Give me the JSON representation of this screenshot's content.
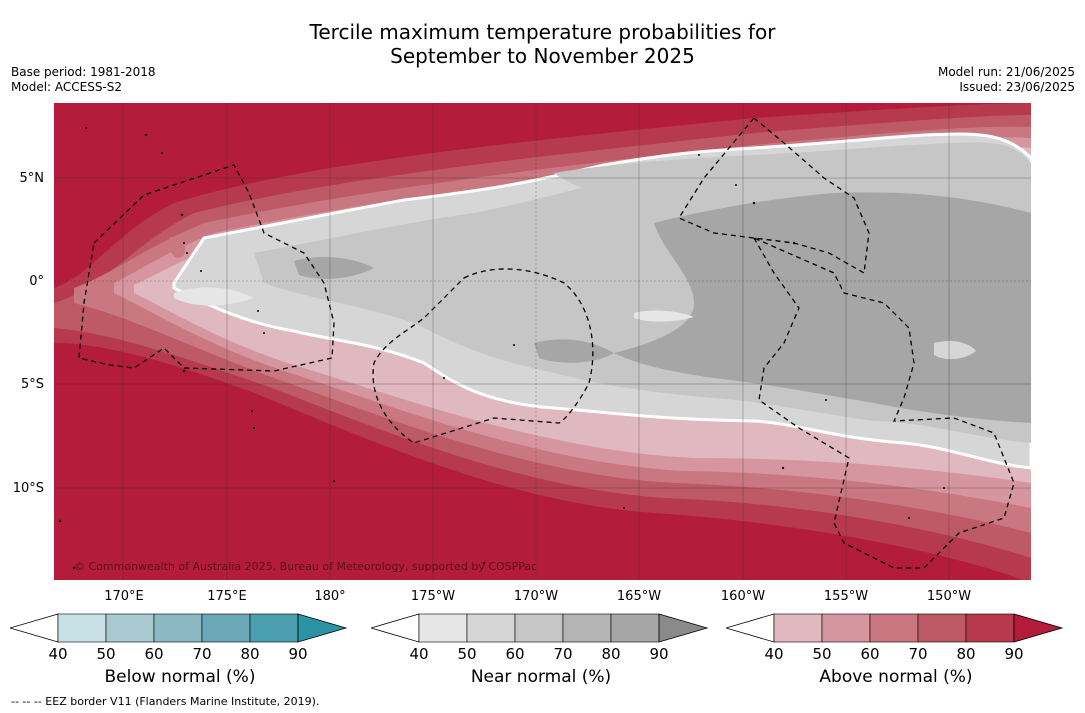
{
  "title": {
    "line1": "Tercile maximum temperature probabilities for",
    "line2": "September to November 2025"
  },
  "meta_left": {
    "base_period": "Base period: 1981-2018",
    "model": "Model: ACCESS-S2"
  },
  "meta_right": {
    "model_run": "Model run: 21/06/2025",
    "issued": "Issued: 23/06/2025"
  },
  "map": {
    "lat_labels": [
      "5°N",
      "0°",
      "5°S",
      "10°S"
    ],
    "lon_labels": [
      "170°E",
      "175°E",
      "180°",
      "175°W",
      "170°W",
      "165°W",
      "160°W",
      "155°W",
      "150°W"
    ],
    "copyright": "© Commonwealth of Australia 2025, Bureau of Meteorology, supported by COSPPac"
  },
  "colorbars": [
    {
      "label": "Below normal (%)",
      "ticks": [
        "40",
        "50",
        "60",
        "70",
        "80",
        "90"
      ],
      "colors": [
        "#c7e1e6",
        "#a8c9cf",
        "#8bb8c2",
        "#6aaab8",
        "#4a9ead",
        "#2b93a4"
      ]
    },
    {
      "label": "Near normal (%)",
      "ticks": [
        "40",
        "50",
        "60",
        "70",
        "80",
        "90"
      ],
      "colors": [
        "#e6e6e6",
        "#d6d6d6",
        "#c6c6c6",
        "#b4b4b4",
        "#a6a6a6",
        "#8a8a8a"
      ]
    },
    {
      "label": "Above normal (%)",
      "ticks": [
        "40",
        "50",
        "60",
        "70",
        "80",
        "90"
      ],
      "colors": [
        "#e0b8bf",
        "#d5969f",
        "#c97780",
        "#be5966",
        "#b6394d",
        "#b31c3a"
      ]
    }
  ],
  "footnote": "--  --  -- EEZ border V11 (Flanders Marine Institute, 2019)."
}
